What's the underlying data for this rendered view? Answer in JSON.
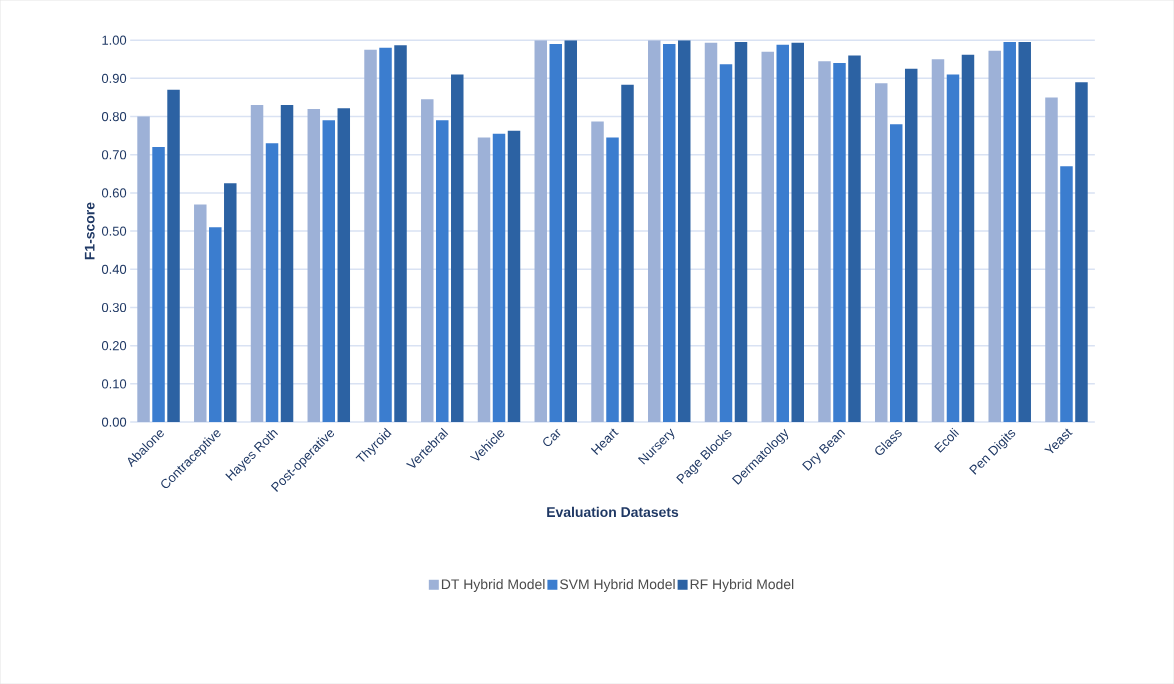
{
  "chart_data": {
    "type": "bar",
    "xlabel": "Evaluation Datasets",
    "ylabel": "F1-score",
    "categories": [
      "Abalone",
      "Contraceptive",
      "Hayes Roth",
      "Post-operative",
      "Thyroid",
      "Vertebral",
      "Vehicle",
      "Car",
      "Heart",
      "Nursery",
      "Page Blocks",
      "Dermatology",
      "Dry Bean",
      "Glass",
      "Ecoli",
      "Pen Digits",
      "Yeast"
    ],
    "series": [
      {
        "name": "DT Hybrid Model",
        "color": "#9db1d7",
        "values": [
          0.8,
          0.57,
          0.83,
          0.82,
          0.975,
          0.845,
          0.745,
          1.0,
          0.787,
          1.0,
          0.993,
          0.97,
          0.945,
          0.887,
          0.95,
          0.972,
          0.85
        ]
      },
      {
        "name": "SVM Hybrid Model",
        "color": "#3b7dcf",
        "values": [
          0.72,
          0.51,
          0.73,
          0.79,
          0.98,
          0.79,
          0.755,
          0.99,
          0.745,
          0.99,
          0.937,
          0.988,
          0.94,
          0.78,
          0.91,
          0.995,
          0.67
        ]
      },
      {
        "name": "RF Hybrid Model",
        "color": "#2c62a3",
        "values": [
          0.87,
          0.625,
          0.83,
          0.822,
          0.987,
          0.91,
          0.763,
          1.0,
          0.883,
          1.0,
          0.995,
          0.993,
          0.96,
          0.925,
          0.962,
          0.995,
          0.89
        ]
      }
    ],
    "ylim": [
      0,
      1.0
    ],
    "yticks": [
      {
        "value": 0,
        "label": "0.00"
      },
      {
        "value": 0.1,
        "label": "0.10"
      },
      {
        "value": 0.2,
        "label": "0.20"
      },
      {
        "value": 0.3,
        "label": "0.30"
      },
      {
        "value": 0.4,
        "label": "0.40"
      },
      {
        "value": 0.5,
        "label": "0.50"
      },
      {
        "value": 0.6,
        "label": "0.60"
      },
      {
        "value": 0.7,
        "label": "0.70"
      },
      {
        "value": 0.8,
        "label": "0.80"
      },
      {
        "value": 0.9,
        "label": "0.90"
      },
      {
        "value": 1.0,
        "label": "1.00"
      }
    ],
    "grid": "y",
    "legend": "bottom"
  }
}
